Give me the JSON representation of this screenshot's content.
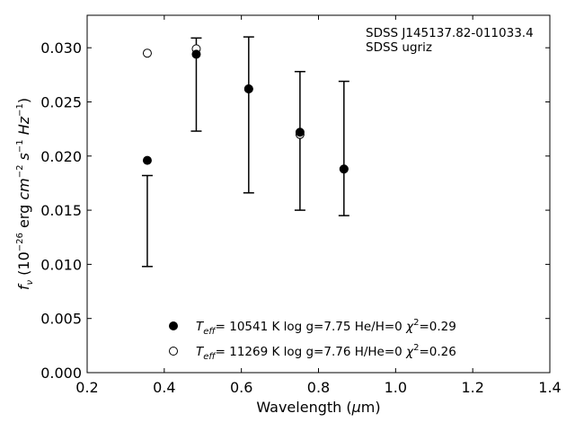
{
  "chart_data": {
    "type": "scatter",
    "xlabel_prefix": "Wavelength (",
    "xlabel_mu": "μ",
    "xlabel_suffix": "m)",
    "ylabel_parts": {
      "f": "f",
      "nu": "ν",
      "open": " (10",
      "exp1": "−26",
      "erg": " erg ",
      "cm": "cm",
      "exp2": "−2",
      "s": " s",
      "exp3": "−1",
      "hz": " Hz",
      "exp4": "−1",
      "close": ")"
    },
    "xlim": [
      0.2,
      1.4
    ],
    "ylim": [
      0.0,
      0.033
    ],
    "xticks": [
      "0.2",
      "0.4",
      "0.6",
      "0.8",
      "1.0",
      "1.2",
      "1.4"
    ],
    "xtick_values": [
      0.2,
      0.4,
      0.6,
      0.8,
      1.0,
      1.2,
      1.4
    ],
    "yticks": [
      "0.000",
      "0.005",
      "0.010",
      "0.015",
      "0.020",
      "0.025",
      "0.030"
    ],
    "ytick_values": [
      0.0,
      0.005,
      0.01,
      0.015,
      0.02,
      0.025,
      0.03
    ],
    "annotation": [
      "SDSS J145137.82-011033.4",
      "SDSS ugriz"
    ],
    "observed": {
      "x": [
        0.356,
        0.483,
        0.619,
        0.752,
        0.866
      ],
      "y": [
        0.014,
        0.0266,
        0.0238,
        0.0214,
        0.0207
      ],
      "err": [
        0.0042,
        0.0043,
        0.0072,
        0.0064,
        0.0062
      ]
    },
    "series": [
      {
        "marker": "filled-circle",
        "x": [
          0.356,
          0.483,
          0.619,
          0.752,
          0.866
        ],
        "y": [
          0.0196,
          0.0294,
          0.0262,
          0.0222,
          0.0188
        ]
      },
      {
        "marker": "open-circle",
        "x": [
          0.356,
          0.483,
          0.619,
          0.752,
          0.866
        ],
        "y": [
          0.0295,
          0.0299,
          0.0262,
          0.022,
          0.0188
        ]
      }
    ],
    "legend": {
      "position": "lower-center",
      "entries": [
        {
          "teff_sym": "T",
          "teff_sub": "eff",
          "text": "= 10541 K  log g=7.75  He/H=0  ",
          "chi": "χ",
          "chi_sup": "2",
          "chi_val": "=0.29"
        },
        {
          "teff_sym": "T",
          "teff_sub": "eff",
          "text": "= 11269 K  log g=7.76  H/He=0  ",
          "chi": "χ",
          "chi_sup": "2",
          "chi_val": "=0.26"
        }
      ]
    }
  }
}
